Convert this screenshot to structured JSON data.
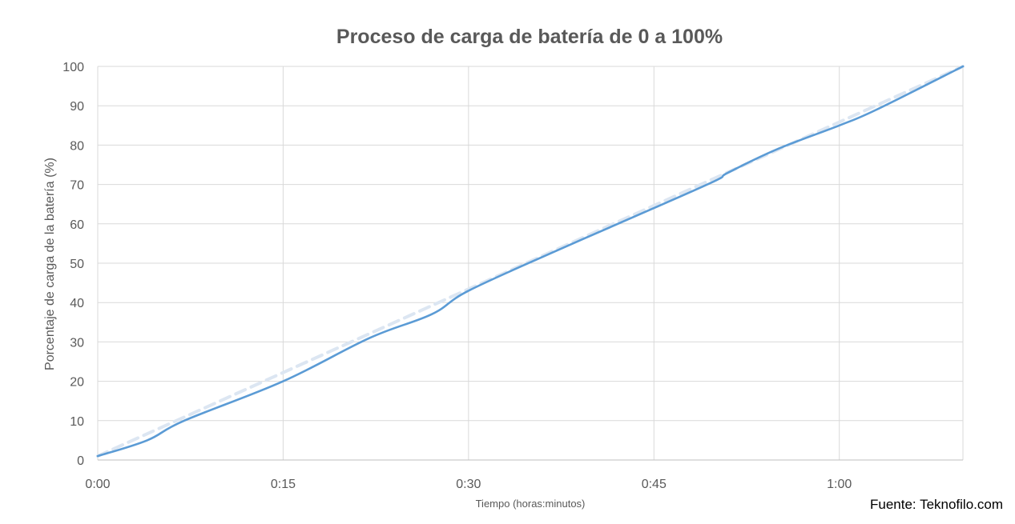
{
  "chart_data": {
    "type": "line",
    "title": "Proceso de carga de batería de 0 a 100%",
    "xlabel": "Tiempo (horas:minutos)",
    "ylabel": "Porcentaje de carga de la batería (%)",
    "source": "Fuente: Teknofilo.com",
    "x_ticks": [
      "0:00",
      "0:15",
      "0:30",
      "0:45",
      "1:00"
    ],
    "x_tick_minutes": [
      0,
      15,
      30,
      45,
      60
    ],
    "y_ticks": [
      0,
      10,
      20,
      30,
      40,
      50,
      60,
      70,
      80,
      90,
      100
    ],
    "xlim": [
      "0:00",
      "1:10"
    ],
    "ylim": [
      0,
      100
    ],
    "grid": true,
    "series": [
      {
        "style": "solid",
        "color": "#5B9BD5",
        "x": [
          "0:00",
          "0:04",
          "0:07",
          "0:15",
          "0:22",
          "0:27",
          "0:30",
          "0:37",
          "0:45",
          "0:50",
          "0:51",
          "0:55",
          "1:00",
          "1:03",
          "1:10"
        ],
        "y": [
          1,
          5,
          10,
          20,
          31,
          37,
          43,
          53,
          64,
          71,
          73,
          79,
          85,
          89,
          100
        ]
      },
      {
        "style": "dashed",
        "color": "#DCE6F2",
        "x": [
          "0:00",
          "1:10"
        ],
        "y": [
          1,
          100
        ]
      }
    ]
  }
}
